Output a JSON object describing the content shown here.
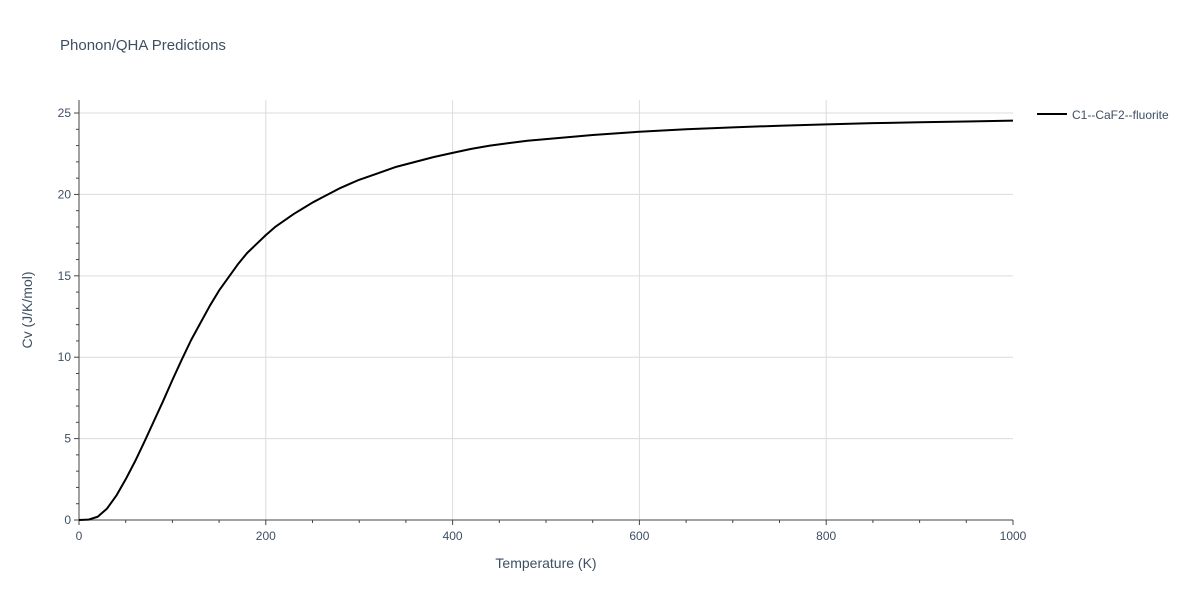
{
  "chart_data": {
    "type": "line",
    "title": "Phonon/QHA Predictions",
    "xlabel": "Temperature (K)",
    "ylabel": "Cv (J/K/mol)",
    "xlim": [
      0,
      1000
    ],
    "ylim": [
      0,
      25.8
    ],
    "x_ticks": [
      0,
      200,
      400,
      600,
      800,
      1000
    ],
    "y_ticks": [
      0,
      5,
      10,
      15,
      20,
      25
    ],
    "grid": true,
    "legend_position": "top-right",
    "series": [
      {
        "name": "C1--CaF2--fluorite",
        "color": "#000000",
        "x": [
          0,
          10,
          20,
          30,
          40,
          50,
          60,
          70,
          80,
          90,
          100,
          110,
          120,
          130,
          140,
          150,
          160,
          170,
          180,
          190,
          200,
          210,
          220,
          230,
          240,
          250,
          260,
          270,
          280,
          290,
          300,
          320,
          340,
          360,
          380,
          400,
          420,
          440,
          460,
          480,
          500,
          550,
          600,
          650,
          700,
          750,
          800,
          850,
          900,
          950,
          1000
        ],
        "y": [
          0.0,
          0.02,
          0.2,
          0.7,
          1.5,
          2.5,
          3.6,
          4.8,
          6.05,
          7.3,
          8.6,
          9.85,
          11.05,
          12.1,
          13.15,
          14.1,
          14.9,
          15.7,
          16.4,
          16.95,
          17.5,
          18.0,
          18.4,
          18.8,
          19.15,
          19.5,
          19.8,
          20.1,
          20.4,
          20.65,
          20.9,
          21.3,
          21.7,
          22.0,
          22.3,
          22.55,
          22.8,
          23.0,
          23.15,
          23.3,
          23.4,
          23.65,
          23.85,
          24.0,
          24.12,
          24.22,
          24.3,
          24.38,
          24.43,
          24.48,
          24.53
        ]
      }
    ]
  }
}
